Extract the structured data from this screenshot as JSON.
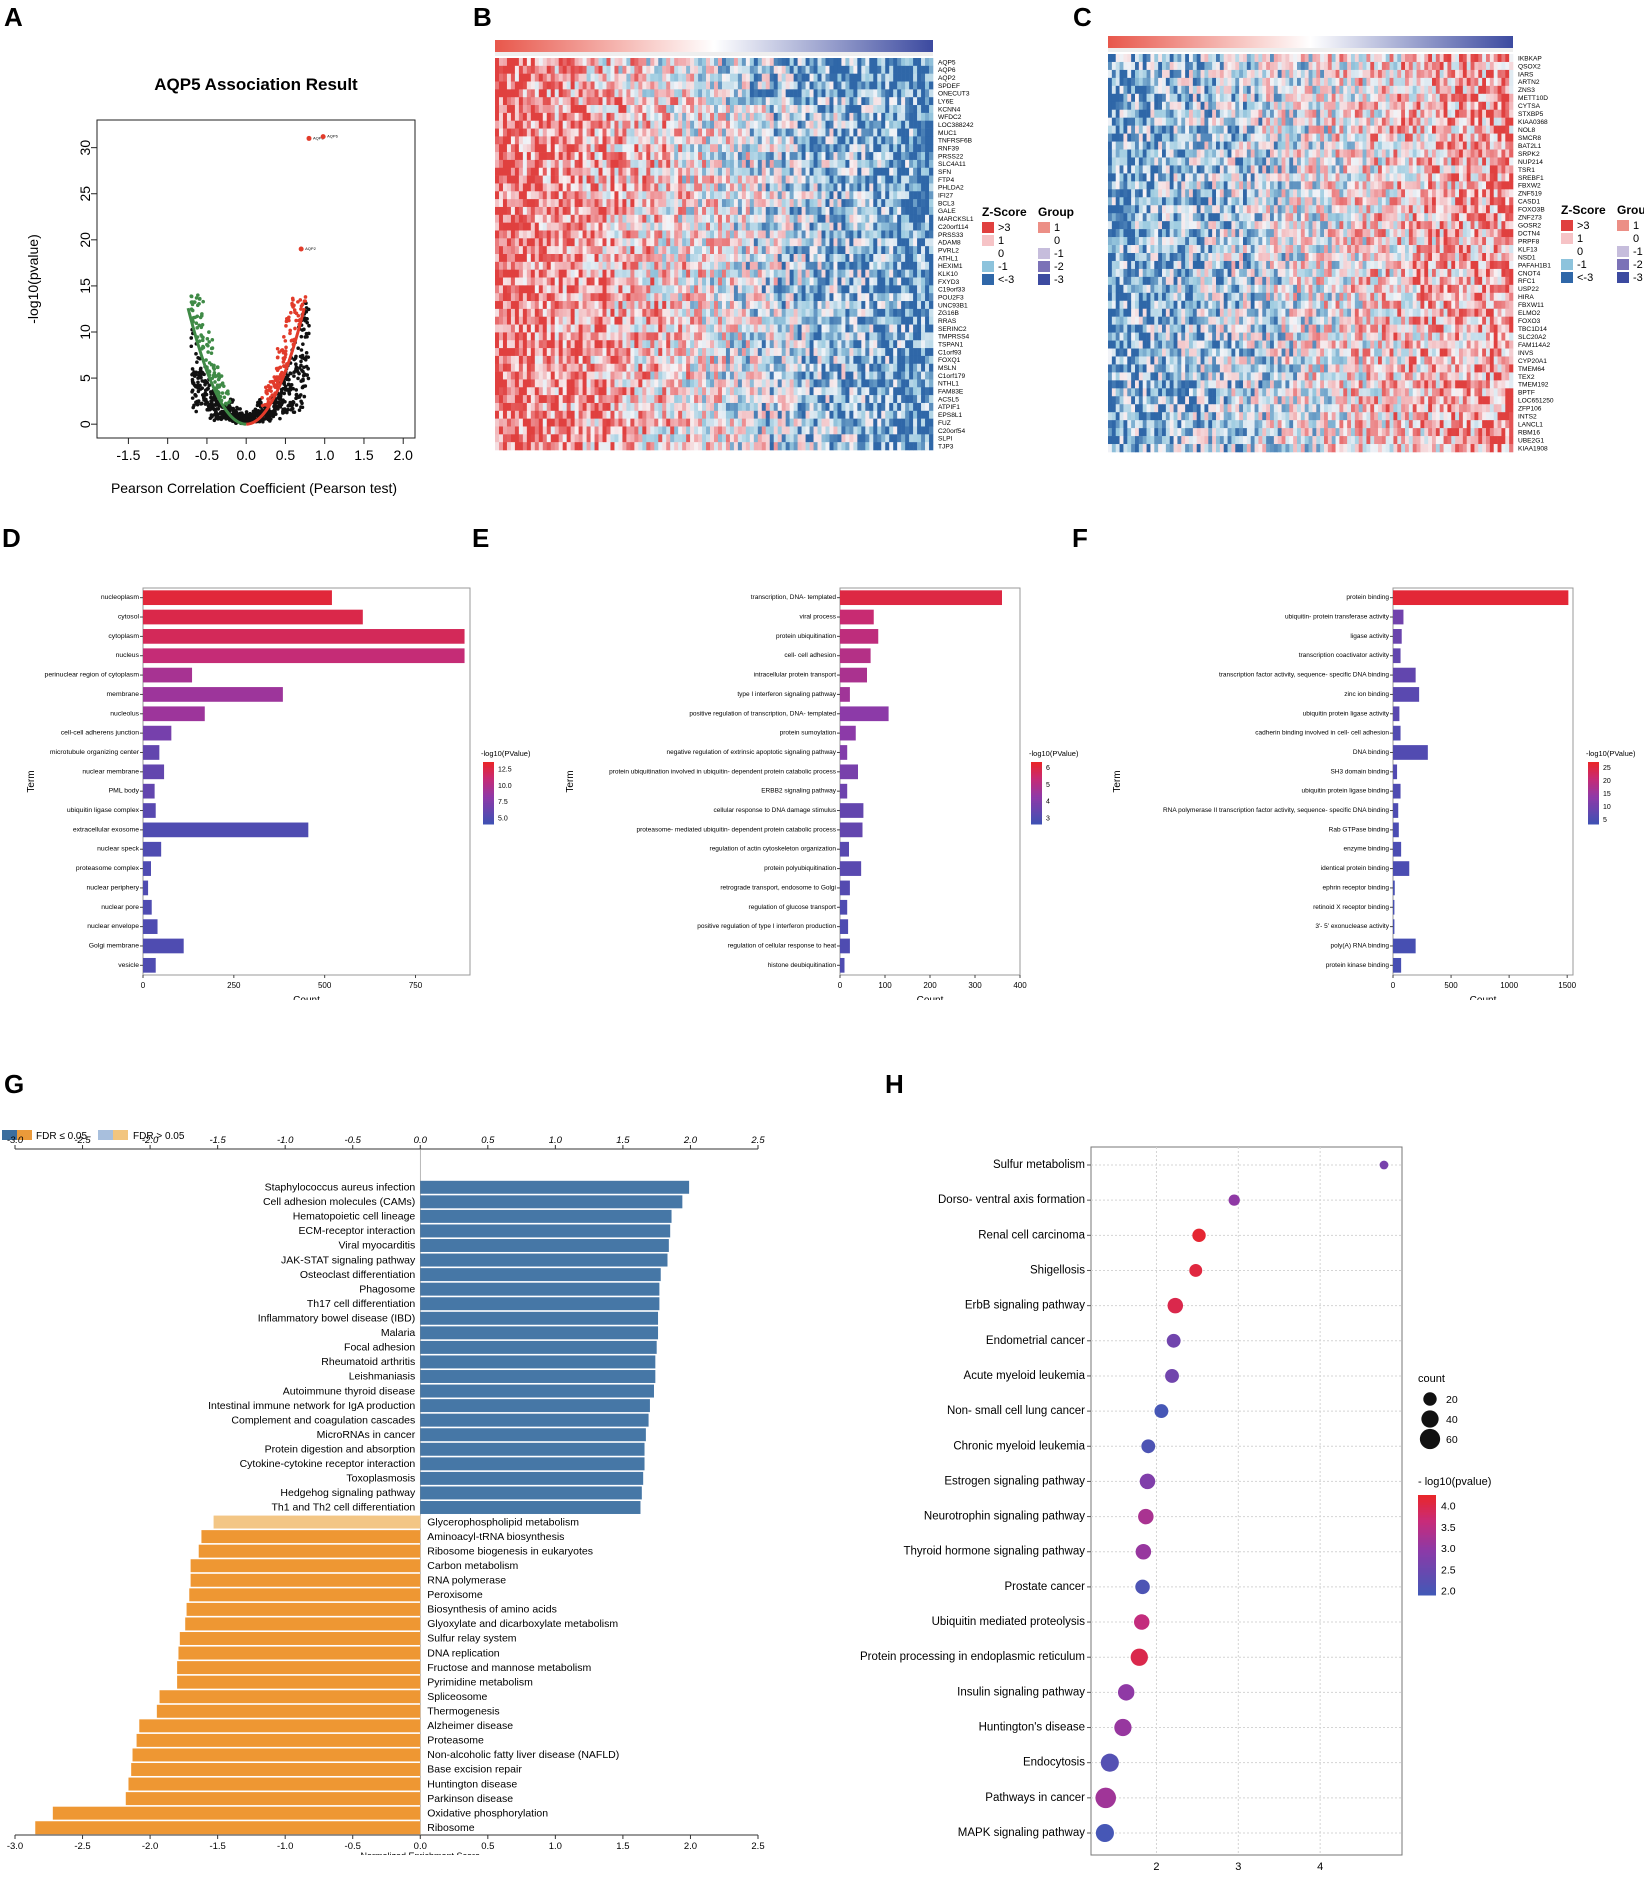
{
  "panel_labels": [
    "A",
    "B",
    "C",
    "D",
    "E",
    "F",
    "G",
    "H"
  ],
  "chart_data": [
    {
      "id": "A",
      "type": "scatter",
      "title": "AQP5 Association Result",
      "xlabel": "Pearson Correlation Coefficient (Pearson test)",
      "ylabel": "-log10(pvalue)",
      "xlim": [
        -1.9,
        2.15
      ],
      "ylim": [
        -1.5,
        33
      ],
      "xticks": [
        "-1.5",
        "-1.0",
        "-0.5",
        "0.0",
        "0.5",
        "1.0",
        "1.5",
        "2.0"
      ],
      "yticks": [
        "0",
        "5",
        "10",
        "15",
        "20",
        "25",
        "30"
      ],
      "highlight_points": [
        {
          "label": "AQP8",
          "x": 0.8,
          "y": 31
        },
        {
          "label": "AQP6",
          "x": 0.98,
          "y": 31.2
        },
        {
          "label": "AQP2",
          "x": 0.7,
          "y": 19
        }
      ],
      "colors": {
        "positive": "#e23b2a",
        "negative": "#3f8a46",
        "neutral": "#111111"
      }
    },
    {
      "id": "B",
      "type": "heatmap",
      "genes": [
        "AQP5",
        "AQP6",
        "AQP2",
        "SPDEF",
        "ONECUT3",
        "LY6E",
        "KCNN4",
        "WFDC2",
        "LOC388242",
        "MUC1",
        "TNFRSF6B",
        "RNF39",
        "PRSS22",
        "SLC4A11",
        "SFN",
        "FTP4",
        "PHLDA2",
        "IFI27",
        "BCL3",
        "GALE",
        "MARCKSL1",
        "C20orf114",
        "PRSS33",
        "ADAM8",
        "PVRL2",
        "ATHL1",
        "HEXIM1",
        "KLK10",
        "FXYD3",
        "C19orf33",
        "POU2F3",
        "UNC93B1",
        "ZG16B",
        "RRAS",
        "SERINC2",
        "TMPRSS4",
        "TSPAN1",
        "C1orf93",
        "FOXQ1",
        "MSLN",
        "C1orf179",
        "NTHL1",
        "FAM83E",
        "ACSL5",
        "ATPIF1",
        "EPS8L1",
        "FUZ",
        "C20orf54",
        "SLPI",
        "TJP3"
      ],
      "legend": {
        "zscore_title": "Z-Score",
        "group_title": "Group",
        "zscore_labels": [
          ">3",
          "1",
          "0",
          "-1",
          "<-3"
        ],
        "group_labels": [
          "1",
          "0",
          "-1",
          "-2",
          "-3"
        ]
      }
    },
    {
      "id": "C",
      "type": "heatmap",
      "genes": [
        "IKBKAP",
        "QSOX2",
        "IARS",
        "ARTN2",
        "ZNS3",
        "METT10D",
        "CYTSA",
        "STXBP5",
        "KIAA0368",
        "NOL8",
        "SMCR8",
        "BAT2L1",
        "SRPK2",
        "NUP214",
        "TSR1",
        "SREBF1",
        "FBXW2",
        "ZNF519",
        "CASD1",
        "FOXO3B",
        "ZNF273",
        "GOSR2",
        "DCTN4",
        "PRPF8",
        "KLF13",
        "NSD1",
        "PAFAH1B1",
        "CNOT4",
        "RFC1",
        "USP22",
        "HIRA",
        "FBXW11",
        "ELMO2",
        "FOXO3",
        "TBC1D14",
        "SLC20A2",
        "FAM114A2",
        "INVS",
        "CYP20A1",
        "TMEM64",
        "TEX2",
        "TMEM192",
        "BPTF",
        "LOC651250",
        "ZFP106",
        "INTS2",
        "LANCL1",
        "RBM16",
        "UBE2G1",
        "KIAA1908"
      ],
      "legend": {
        "zscore_title": "Z-Score",
        "group_title": "Group",
        "zscore_labels": [
          ">3",
          "1",
          "0",
          "-1",
          "<-3"
        ],
        "group_labels": [
          "1",
          "0",
          "-1",
          "-2",
          "-3"
        ]
      }
    },
    {
      "id": "D",
      "type": "bar",
      "orientation": "horizontal",
      "ylabel": "Term",
      "xlabel": "Count",
      "xlim": [
        0,
        900
      ],
      "xticks": [
        0,
        250,
        500,
        750
      ],
      "categories": [
        "nucleoplasm",
        "cytosol",
        "cytoplasm",
        "nucleus",
        "perinuclear region of cytoplasm",
        "membrane",
        "nucleolus",
        "cell-cell adherens junction",
        "microtubule organizing center",
        "nuclear membrane",
        "PML body",
        "ubiquitin ligase complex",
        "extracellular exosome",
        "nuclear speck",
        "proteasome complex",
        "nuclear periphery",
        "nuclear pore",
        "nuclear envelope",
        "Golgi membrane",
        "vesicle"
      ],
      "values": [
        520,
        605,
        885,
        885,
        135,
        385,
        170,
        78,
        45,
        58,
        32,
        35,
        455,
        50,
        22,
        14,
        24,
        40,
        112,
        35
      ],
      "color_values": [
        13,
        12.5,
        12,
        11,
        9.5,
        9,
        9,
        7,
        6,
        6,
        6,
        5.5,
        5,
        5,
        5,
        5,
        5,
        5,
        5,
        5
      ],
      "legend_title": "-log10(PValue)",
      "legend_ticks": [
        "12.5",
        "10.0",
        "7.5",
        "5.0"
      ],
      "legend_range": [
        4,
        13.5
      ]
    },
    {
      "id": "E",
      "type": "bar",
      "orientation": "horizontal",
      "ylabel": "Term",
      "xlabel": "Count",
      "xlim": [
        0,
        400
      ],
      "xticks": [
        0,
        100,
        200,
        300,
        400
      ],
      "categories": [
        "transcription, DNA- templated",
        "viral process",
        "protein ubiquitination",
        "cell- cell adhesion",
        "intracellular protein transport",
        "type I interferon signaling pathway",
        "positive regulation of transcription, DNA- templated",
        "protein sumoylation",
        "negative regulation of extrinsic apoptotic signaling pathway",
        "protein ubiquitination involved in ubiquitin- dependent protein catabolic process",
        "ERBB2 signaling pathway",
        "cellular response to DNA damage stimulus",
        "proteasome- mediated ubiquitin- dependent protein catabolic process",
        "regulation of actin cytoskeleton organization",
        "protein polyubiquitination",
        "retrograde transport, endosome to Golgi",
        "regulation of glucose transport",
        "positive regulation of type I interferon production",
        "regulation of cellular response to heat",
        "histone deubiquitination"
      ],
      "values": [
        360,
        75,
        85,
        68,
        60,
        22,
        108,
        35,
        16,
        40,
        16,
        52,
        50,
        20,
        47,
        22,
        16,
        18,
        22,
        10
      ],
      "color_values": [
        6,
        5.4,
        5.2,
        5,
        4.8,
        4.6,
        4.2,
        4.2,
        4,
        3.8,
        3.6,
        3.4,
        3.4,
        3.2,
        3.2,
        3.1,
        3,
        3,
        3,
        3
      ],
      "legend_title": "-log10(PValue)",
      "legend_ticks": [
        "6",
        "5",
        "4",
        "3"
      ],
      "legend_range": [
        2.6,
        6.3
      ]
    },
    {
      "id": "F",
      "type": "bar",
      "orientation": "horizontal",
      "ylabel": "Term",
      "xlabel": "Count",
      "xlim": [
        0,
        1550
      ],
      "xticks": [
        0,
        500,
        1000,
        1500
      ],
      "categories": [
        "protein binding",
        "ubiquitin- protein transferase activity",
        "ligase activity",
        "transcription coactivator activity",
        "transcription factor activity, sequence- specific DNA binding",
        "zinc ion binding",
        "ubiquitin protein ligase activity",
        "cadherin binding involved in cell- cell adhesion",
        "DNA binding",
        "SH3 domain binding",
        "ubiquitin protein ligase binding",
        "RNA polymerase II transcription factor activity, sequence- specific DNA binding",
        "Rab GTPase binding",
        "enzyme binding",
        "identical protein binding",
        "ephrin receptor binding",
        "retinoid X receptor binding",
        "3'- 5' exonuclease activity",
        "poly(A) RNA binding",
        "protein kinase binding"
      ],
      "values": [
        1510,
        90,
        75,
        65,
        195,
        225,
        55,
        65,
        300,
        35,
        65,
        45,
        50,
        70,
        140,
        15,
        12,
        12,
        195,
        70
      ],
      "color_values": [
        26,
        10,
        9,
        8,
        8,
        7,
        7,
        6,
        6,
        6,
        5.5,
        5.5,
        5,
        5,
        5,
        4.5,
        4.5,
        4.5,
        4.5,
        4.5
      ],
      "legend_title": "-log10(PValue)",
      "legend_ticks": [
        "25",
        "20",
        "15",
        "10",
        "5"
      ],
      "legend_range": [
        3,
        27
      ]
    },
    {
      "id": "G",
      "type": "bar",
      "orientation": "horizontal",
      "xlabel": "Normalized Enrichment Score",
      "xlim": [
        -3.0,
        2.5
      ],
      "xticks": [
        "-3.0",
        "-2.5",
        "-2.0",
        "-1.5",
        "-1.0",
        "-0.5",
        "0.0",
        "0.5",
        "1.0",
        "1.5",
        "2.0",
        "2.5"
      ],
      "legend": [
        {
          "label": "FDR ≤ 0.05"
        },
        {
          "label": "FDR > 0.05"
        }
      ],
      "colors": {
        "positive": "#4677a6",
        "negative": "#ee9733",
        "nonsig": "#f3c685",
        "legend_a": "#3b6e9e",
        "legend_b": "#eb9a3a",
        "legend_c": "#a8bfdd",
        "legend_d": "#f2c57f"
      },
      "categories": [
        "Staphylococcus aureus infection",
        "Cell adhesion molecules (CAMs)",
        "Hematopoietic cell lineage",
        "ECM-receptor interaction",
        "Viral myocarditis",
        "JAK-STAT signaling pathway",
        "Osteoclast differentiation",
        "Phagosome",
        "Th17 cell differentiation",
        "Inflammatory bowel disease (IBD)",
        "Malaria",
        "Focal adhesion",
        "Rheumatoid arthritis",
        "Leishmaniasis",
        "Autoimmune thyroid disease",
        "Intestinal immune network for IgA production",
        "Complement and coagulation cascades",
        "MicroRNAs in cancer",
        "Protein digestion and absorption",
        "Cytokine-cytokine receptor interaction",
        "Toxoplasmosis",
        "Hedgehog signaling pathway",
        "Th1 and Th2 cell differentiation",
        "Glycerophospholipid metabolism",
        "Aminoacyl-tRNA biosynthesis",
        "Ribosome biogenesis in eukaryotes",
        "Carbon metabolism",
        "RNA polymerase",
        "Peroxisome",
        "Biosynthesis of amino acids",
        "Glyoxylate and dicarboxylate metabolism",
        "Sulfur relay system",
        "DNA replication",
        "Fructose and mannose metabolism",
        "Pyrimidine metabolism",
        "Spliceosome",
        "Thermogenesis",
        "Alzheimer disease",
        "Proteasome",
        "Non-alcoholic fatty liver disease (NAFLD)",
        "Base excision repair",
        "Huntington disease",
        "Parkinson disease",
        "Oxidative phosphorylation",
        "Ribosome"
      ],
      "values": [
        1.99,
        1.94,
        1.86,
        1.85,
        1.84,
        1.83,
        1.78,
        1.77,
        1.77,
        1.76,
        1.76,
        1.75,
        1.74,
        1.74,
        1.73,
        1.7,
        1.69,
        1.67,
        1.66,
        1.66,
        1.65,
        1.64,
        1.63,
        -1.53,
        -1.62,
        -1.64,
        -1.7,
        -1.7,
        -1.71,
        -1.73,
        -1.74,
        -1.78,
        -1.79,
        -1.8,
        -1.8,
        -1.93,
        -1.95,
        -2.08,
        -2.1,
        -2.13,
        -2.14,
        -2.16,
        -2.18,
        -2.72,
        -2.85
      ],
      "significant": [
        true,
        true,
        true,
        true,
        true,
        true,
        true,
        true,
        true,
        true,
        true,
        true,
        true,
        true,
        true,
        true,
        true,
        true,
        true,
        true,
        true,
        true,
        true,
        false,
        true,
        true,
        true,
        true,
        true,
        true,
        true,
        true,
        true,
        true,
        true,
        true,
        true,
        true,
        true,
        true,
        true,
        true,
        true,
        true,
        true
      ]
    },
    {
      "id": "H",
      "type": "scatter",
      "subtype": "dotplot",
      "xlim": [
        1.2,
        5.0
      ],
      "xticks": [
        "2",
        "3",
        "4"
      ],
      "categories": [
        "Sulfur metabolism",
        "Dorso- ventral axis formation",
        "Renal cell carcinoma",
        "Shigellosis",
        "ErbB signaling pathway",
        "Endometrial cancer",
        "Acute myeloid leukemia",
        "Non- small cell lung cancer",
        "Chronic myeloid leukemia",
        "Estrogen signaling pathway",
        "Neurotrophin signaling pathway",
        "Thyroid hormone signaling pathway",
        "Prostate cancer",
        "Ubiquitin mediated proteolysis",
        "Protein processing in endoplasmic reticulum",
        "Insulin signaling pathway",
        "Huntington's disease",
        "Endocytosis",
        "Pathways in cancer",
        "MAPK signaling pathway"
      ],
      "x": [
        4.78,
        2.95,
        2.52,
        2.48,
        2.23,
        2.21,
        2.19,
        2.06,
        1.9,
        1.89,
        1.87,
        1.84,
        1.83,
        1.82,
        1.79,
        1.63,
        1.59,
        1.43,
        1.38,
        1.37
      ],
      "counts": [
        5,
        12,
        20,
        18,
        30,
        22,
        22,
        22,
        22,
        30,
        30,
        30,
        25,
        30,
        40,
        35,
        40,
        45,
        62,
        45
      ],
      "pvalues": [
        2.7,
        3.0,
        4.2,
        4.1,
        4.0,
        2.6,
        2.6,
        2.0,
        2.1,
        2.8,
        3.3,
        3.1,
        2.1,
        3.6,
        4.0,
        3.0,
        3.1,
        2.2,
        3.2,
        2.0
      ],
      "size_legend_title": "count",
      "size_legend": [
        "20",
        "40",
        "60"
      ],
      "color_legend_title": "- log10(pvalue)",
      "color_legend_ticks": [
        "4.0",
        "3.5",
        "3.0",
        "2.5",
        "2.0"
      ],
      "color_range": [
        1.9,
        4.25
      ]
    }
  ]
}
